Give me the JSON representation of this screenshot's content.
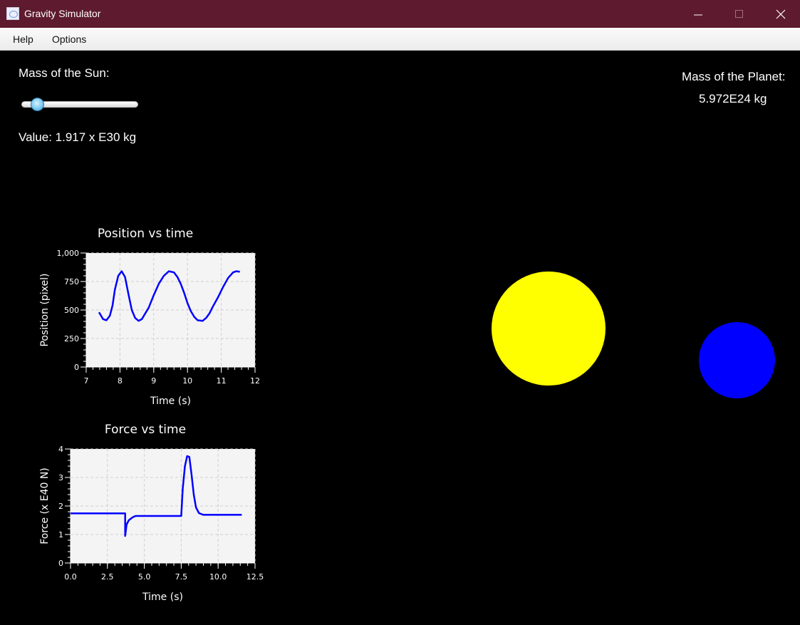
{
  "window": {
    "title": "Gravity Simulator"
  },
  "menu": [
    "Help",
    "Options"
  ],
  "sun": {
    "label": "Mass of the Sun:",
    "value_text": "Value: 1.917 x E30 kg",
    "slider_fraction": 0.09
  },
  "planet": {
    "label": "Mass of the Planet:",
    "value": "5.972E24 kg"
  },
  "colors": {
    "sun": "#ffff00",
    "planet": "#0000ff",
    "series": "#0000ff",
    "titlebar": "#5e1a2e"
  },
  "chart_data": [
    {
      "type": "line",
      "title": "Position vs time",
      "xlabel": "Time (s)",
      "ylabel": "Position (pixel)",
      "xlim": [
        7,
        12
      ],
      "ylim": [
        0,
        1000
      ],
      "xticks": [
        7,
        8,
        9,
        10,
        11,
        12
      ],
      "yticks": [
        0,
        250,
        500,
        750,
        1000
      ],
      "ytick_labels": [
        "0",
        "250",
        "500",
        "750",
        "1,000"
      ],
      "grid": true,
      "series": [
        {
          "x": [
            7.38,
            7.5,
            7.6,
            7.7,
            7.78,
            7.85,
            7.95,
            8.05,
            8.15,
            8.25,
            8.35,
            8.45,
            8.55,
            8.65,
            8.75,
            8.85,
            9.0,
            9.15,
            9.3,
            9.45,
            9.6,
            9.7,
            9.8,
            9.9,
            10.0,
            10.1,
            10.2,
            10.3,
            10.45,
            10.55,
            10.65,
            10.75,
            10.9,
            11.05,
            11.2,
            11.35,
            11.45,
            11.55
          ],
          "y": [
            480,
            420,
            410,
            450,
            540,
            680,
            800,
            840,
            790,
            640,
            500,
            430,
            405,
            420,
            470,
            520,
            630,
            730,
            800,
            840,
            830,
            790,
            730,
            650,
            560,
            490,
            440,
            410,
            405,
            430,
            470,
            530,
            610,
            700,
            780,
            830,
            840,
            835
          ]
        }
      ]
    },
    {
      "type": "line",
      "title": "Force vs time",
      "xlabel": "Time (s)",
      "ylabel": "Force (x E40 N)",
      "xlim": [
        0,
        12.5
      ],
      "ylim": [
        0,
        4
      ],
      "xticks": [
        0,
        2.5,
        5,
        7.5,
        10,
        12.5
      ],
      "xtick_labels": [
        "0.0",
        "2.5",
        "5.0",
        "7.5",
        "10.0",
        "12.5"
      ],
      "yticks": [
        0,
        1,
        2,
        3,
        4
      ],
      "grid": true,
      "series": [
        {
          "x": [
            0,
            3.7,
            3.7,
            3.8,
            3.95,
            4.2,
            4.4,
            7.5,
            7.6,
            7.75,
            7.9,
            8.05,
            8.2,
            8.35,
            8.5,
            8.7,
            9.0,
            11.6
          ],
          "y": [
            1.74,
            1.74,
            0.95,
            1.35,
            1.5,
            1.6,
            1.65,
            1.65,
            2.6,
            3.4,
            3.75,
            3.72,
            3.1,
            2.4,
            1.95,
            1.75,
            1.69,
            1.69
          ]
        }
      ]
    }
  ]
}
